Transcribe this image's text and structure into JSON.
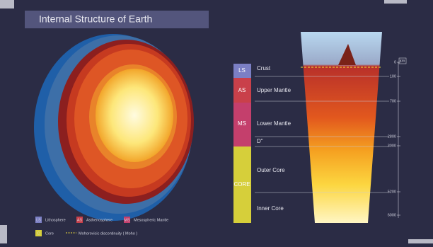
{
  "header": {
    "title": "Internal Structure of Earth"
  },
  "layers": [
    {
      "abbr": "LS",
      "name": "Crust"
    },
    {
      "abbr": "AS",
      "name": "Upper Mantle"
    },
    {
      "abbr": "MS",
      "name": "Lower Mantle"
    },
    {
      "name": "D\""
    },
    {
      "abbr": "CORE",
      "name": "Outer Core"
    },
    {
      "name": "Inner Core"
    }
  ],
  "scale": {
    "unit": "km",
    "labels": [
      "0",
      "100",
      "700",
      "2800",
      "3000",
      "5200",
      "6000"
    ]
  },
  "legend": [
    {
      "abbr": "LS",
      "label": "Lithosphere"
    },
    {
      "abbr": "AS",
      "label": "Asthenosphere"
    },
    {
      "abbr": "MS",
      "label": "Mesospheric Mantle"
    },
    {
      "abbr": "C",
      "label": "Core"
    },
    {
      "label": "Mohorovicic discontinuity ( Moho )"
    }
  ]
}
